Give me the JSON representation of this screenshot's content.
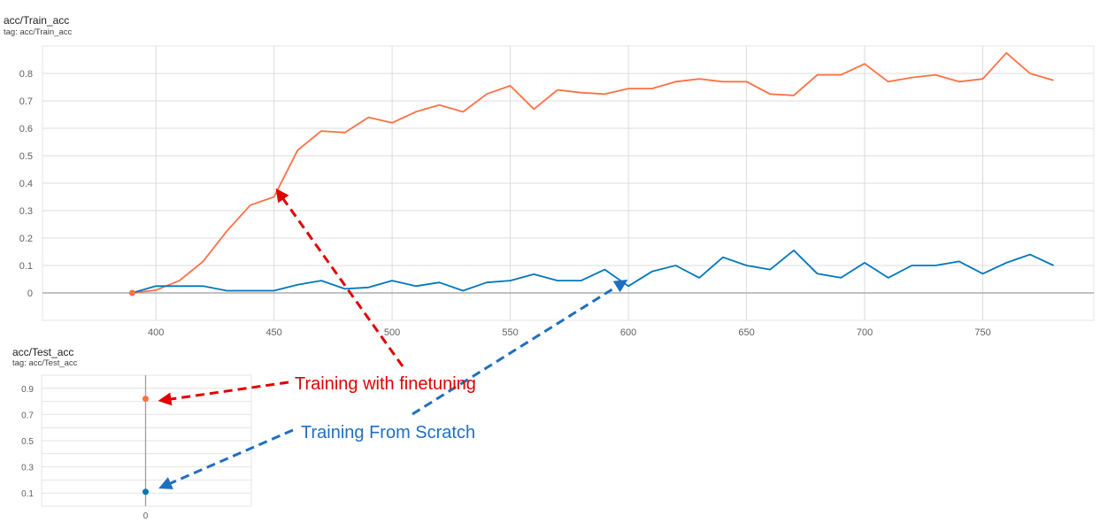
{
  "chart_data": [
    {
      "type": "line",
      "title": "acc/Train_acc",
      "subtitle": "tag: acc/Train_acc",
      "xlim": [
        352,
        797
      ],
      "ylim": [
        -0.1,
        0.9
      ],
      "x_ticks": [
        400,
        450,
        500,
        550,
        600,
        650,
        700,
        750
      ],
      "y_ticks": [
        0,
        0.1,
        0.2,
        0.3,
        0.4,
        0.5,
        0.6,
        0.7,
        0.8
      ],
      "grid": true,
      "series": [
        {
          "name": "Training with finetuning",
          "color": "#ff7043",
          "x": [
            390,
            400,
            410,
            420,
            430,
            440,
            450,
            460,
            470,
            480,
            490,
            500,
            510,
            520,
            530,
            540,
            550,
            560,
            570,
            580,
            590,
            600,
            610,
            620,
            630,
            640,
            650,
            660,
            670,
            680,
            690,
            700,
            710,
            720,
            730,
            740,
            750,
            760,
            770,
            780
          ],
          "values": [
            0.0,
            0.01,
            0.045,
            0.115,
            0.225,
            0.32,
            0.35,
            0.52,
            0.59,
            0.585,
            0.64,
            0.62,
            0.66,
            0.685,
            0.66,
            0.725,
            0.755,
            0.67,
            0.74,
            0.73,
            0.725,
            0.745,
            0.745,
            0.77,
            0.78,
            0.77,
            0.77,
            0.725,
            0.72,
            0.795,
            0.795,
            0.835,
            0.77,
            0.785,
            0.795,
            0.77,
            0.78,
            0.875,
            0.8,
            0.775
          ]
        },
        {
          "name": "Training From Scratch",
          "color": "#0077bb",
          "x": [
            390,
            400,
            410,
            420,
            430,
            440,
            450,
            460,
            470,
            480,
            490,
            500,
            510,
            520,
            530,
            540,
            550,
            560,
            570,
            580,
            590,
            600,
            610,
            620,
            630,
            640,
            650,
            660,
            670,
            680,
            690,
            700,
            710,
            720,
            730,
            740,
            750,
            760,
            770,
            780
          ],
          "values": [
            0.0,
            0.025,
            0.025,
            0.025,
            0.008,
            0.008,
            0.008,
            0.03,
            0.045,
            0.015,
            0.02,
            0.045,
            0.025,
            0.038,
            0.008,
            0.038,
            0.045,
            0.068,
            0.045,
            0.045,
            0.085,
            0.025,
            0.078,
            0.1,
            0.055,
            0.13,
            0.1,
            0.085,
            0.155,
            0.07,
            0.055,
            0.11,
            0.055,
            0.1,
            0.1,
            0.115,
            0.07,
            0.11,
            0.14,
            0.1
          ]
        }
      ]
    },
    {
      "type": "scatter",
      "title": "acc/Test_acc",
      "subtitle": "tag: acc/Test_acc",
      "xlim": [
        -1,
        1
      ],
      "ylim": [
        0.0,
        1.0
      ],
      "x_ticks": [
        0
      ],
      "y_ticks": [
        0.1,
        0.3,
        0.5,
        0.7,
        0.9
      ],
      "grid": true,
      "series": [
        {
          "name": "Training with finetuning",
          "color": "#ff7043",
          "x": [
            0
          ],
          "values": [
            0.82
          ]
        },
        {
          "name": "Training From Scratch",
          "color": "#0077bb",
          "x": [
            0
          ],
          "values": [
            0.11
          ]
        }
      ]
    }
  ],
  "annotations": {
    "finetune_label": "Training with finetuning",
    "finetune_color": "#e00000",
    "scratch_label": "Training From Scratch",
    "scratch_color": "#1f6fbf"
  }
}
